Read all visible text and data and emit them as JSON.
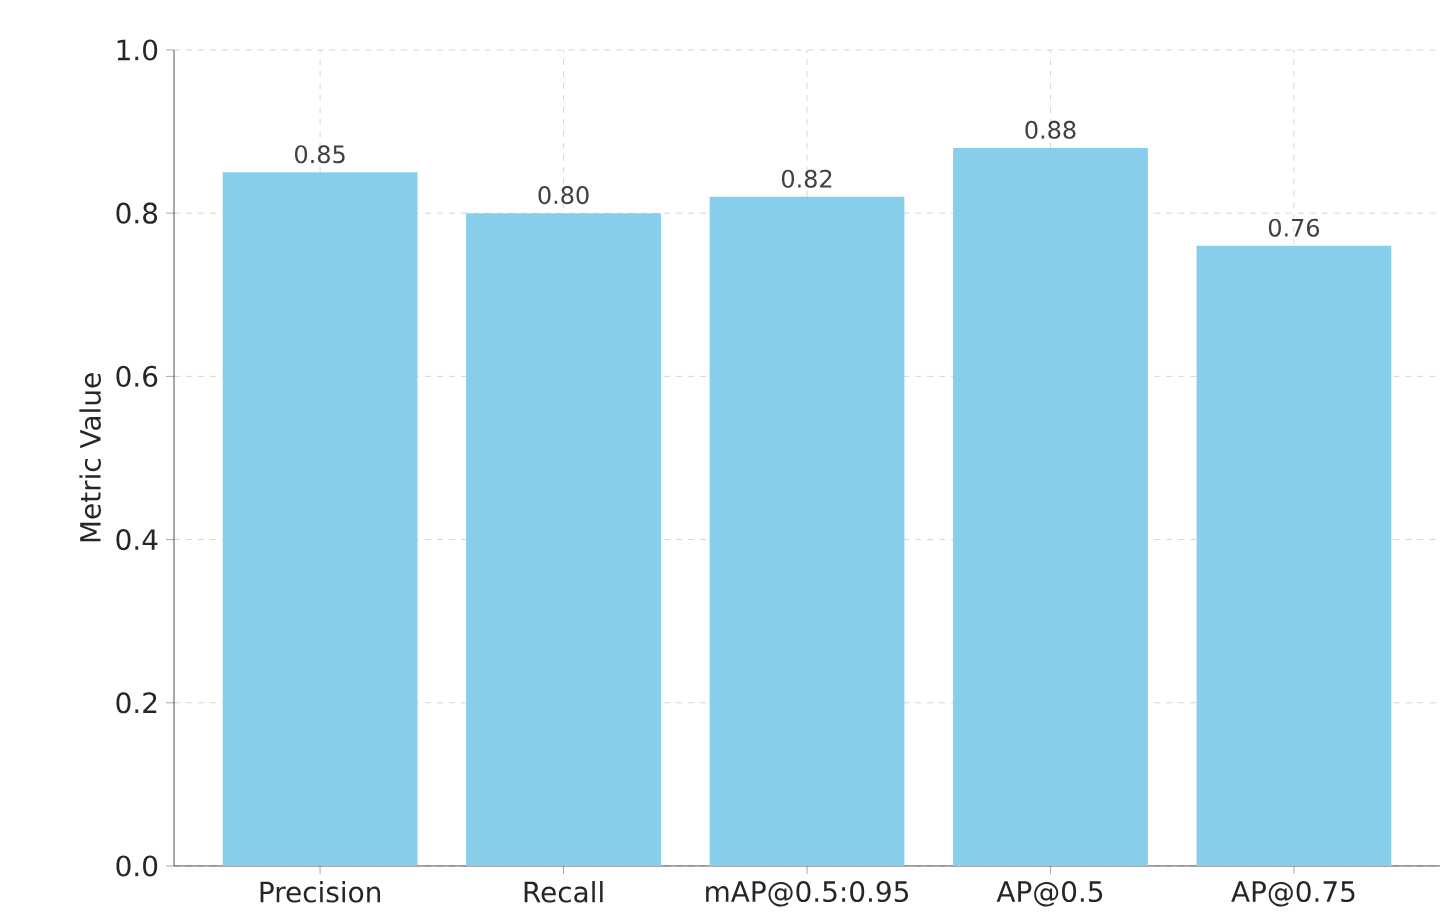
{
  "chart_data": {
    "type": "bar",
    "ylabel": "Metric Value",
    "categories": [
      "Precision",
      "Recall",
      "mAP@0.5:0.95",
      "AP@0.5",
      "AP@0.75"
    ],
    "values": [
      0.85,
      0.8,
      0.82,
      0.88,
      0.76
    ],
    "value_labels": [
      "0.85",
      "0.80",
      "0.82",
      "0.88",
      "0.76"
    ],
    "color": "#87ceeb",
    "ylim": [
      0,
      1.0
    ],
    "yticks": [
      {
        "value": 0,
        "label": "0.0"
      },
      {
        "value": 0.2,
        "label": "0.2"
      },
      {
        "value": 0.4,
        "label": "0.4"
      },
      {
        "value": 0.6,
        "label": "0.6"
      },
      {
        "value": 0.8,
        "label": "0.8"
      },
      {
        "value": 1.0,
        "label": "1.0"
      }
    ],
    "grid": true
  }
}
